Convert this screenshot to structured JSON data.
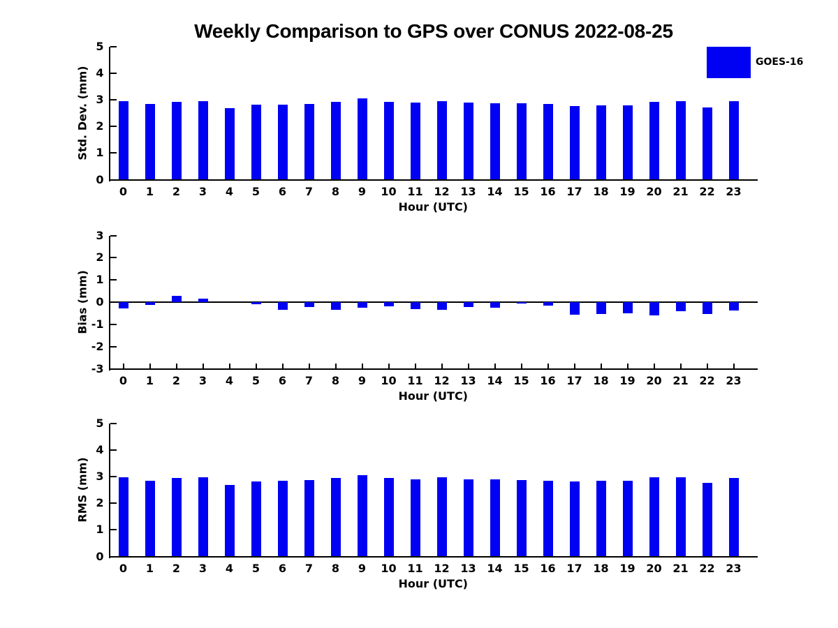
{
  "title": "Weekly Comparison to GPS over CONUS 2022-08-25",
  "legend": {
    "label": "GOES-16",
    "swatch_color": "#0000F2",
    "position": "top-right"
  },
  "colors": {
    "bar": "#0000F2",
    "axis": "#000000",
    "text": "#000000",
    "background": "#FFFFFF"
  },
  "chart_data": [
    {
      "type": "bar",
      "name": "std-dev",
      "ylabel": "Std. Dev. (mm)",
      "xlabel": "Hour (UTC)",
      "categories": [
        "0",
        "1",
        "2",
        "3",
        "4",
        "5",
        "6",
        "7",
        "8",
        "9",
        "10",
        "11",
        "12",
        "13",
        "14",
        "15",
        "16",
        "17",
        "18",
        "19",
        "20",
        "21",
        "22",
        "23"
      ],
      "values": [
        2.95,
        2.85,
        2.93,
        2.96,
        2.7,
        2.82,
        2.83,
        2.86,
        2.93,
        3.05,
        2.93,
        2.9,
        2.96,
        2.89,
        2.88,
        2.87,
        2.84,
        2.77,
        2.79,
        2.8,
        2.93,
        2.96,
        2.71,
        2.94
      ],
      "ylim": [
        0,
        5
      ],
      "yticks": [
        0,
        1,
        2,
        3,
        4,
        5
      ],
      "grid": false,
      "series_name": "GOES-16"
    },
    {
      "type": "bar",
      "name": "bias",
      "ylabel": "Bias (mm)",
      "xlabel": "Hour (UTC)",
      "categories": [
        "0",
        "1",
        "2",
        "3",
        "4",
        "5",
        "6",
        "7",
        "8",
        "9",
        "10",
        "11",
        "12",
        "13",
        "14",
        "15",
        "16",
        "17",
        "18",
        "19",
        "20",
        "21",
        "22",
        "23"
      ],
      "values": [
        -0.28,
        -0.13,
        0.28,
        0.16,
        0.0,
        -0.1,
        -0.33,
        -0.23,
        -0.35,
        -0.25,
        -0.2,
        -0.3,
        -0.35,
        -0.21,
        -0.25,
        -0.07,
        -0.16,
        -0.55,
        -0.53,
        -0.5,
        -0.61,
        -0.42,
        -0.52,
        -0.37
      ],
      "ylim": [
        -3,
        3
      ],
      "yticks": [
        -3,
        -2,
        -1,
        0,
        1,
        2,
        3
      ],
      "grid": false,
      "series_name": "GOES-16"
    },
    {
      "type": "bar",
      "name": "rms",
      "ylabel": "RMS (mm)",
      "xlabel": "Hour (UTC)",
      "categories": [
        "0",
        "1",
        "2",
        "3",
        "4",
        "5",
        "6",
        "7",
        "8",
        "9",
        "10",
        "11",
        "12",
        "13",
        "14",
        "15",
        "16",
        "17",
        "18",
        "19",
        "20",
        "21",
        "22",
        "23"
      ],
      "values": [
        2.97,
        2.85,
        2.94,
        2.97,
        2.7,
        2.82,
        2.84,
        2.87,
        2.94,
        3.06,
        2.94,
        2.91,
        2.97,
        2.9,
        2.89,
        2.87,
        2.85,
        2.82,
        2.84,
        2.84,
        2.99,
        2.98,
        2.76,
        2.96
      ],
      "ylim": [
        0,
        5
      ],
      "yticks": [
        0,
        1,
        2,
        3,
        4,
        5
      ],
      "grid": false,
      "series_name": "GOES-16"
    }
  ]
}
